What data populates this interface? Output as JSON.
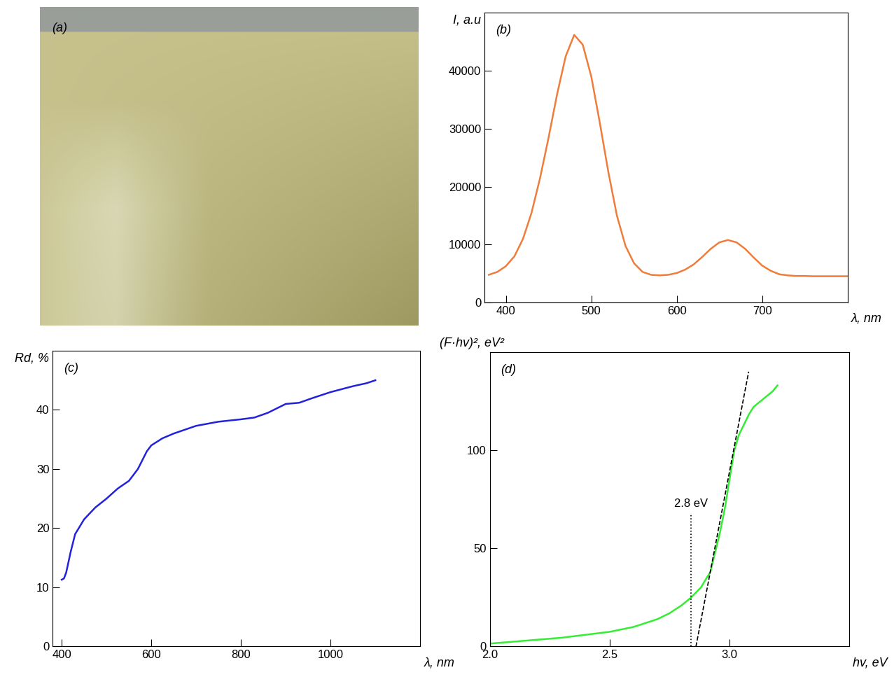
{
  "chart_data": [
    {
      "type": "image",
      "label": "(a)"
    },
    {
      "type": "line",
      "label": "(b)",
      "ylabel": "I, a.u",
      "xlabel": "λ, nm",
      "xlim": [
        375,
        800
      ],
      "xticks": [
        400,
        500,
        600,
        700
      ],
      "ylim": [
        0,
        50000
      ],
      "yticks": [
        0,
        10000,
        20000,
        30000,
        40000
      ],
      "series": [
        {
          "color": "#ee7d3b",
          "line_style": "solid",
          "x": [
            380,
            390,
            400,
            410,
            420,
            430,
            440,
            450,
            460,
            470,
            480,
            490,
            500,
            510,
            520,
            530,
            540,
            550,
            560,
            570,
            580,
            590,
            600,
            610,
            620,
            630,
            640,
            650,
            660,
            670,
            680,
            690,
            700,
            710,
            720,
            730,
            740,
            750,
            760,
            770,
            780,
            790,
            800
          ],
          "values": [
            4800,
            5300,
            6300,
            8000,
            11000,
            15500,
            21500,
            28500,
            36000,
            42500,
            46200,
            44500,
            39000,
            31000,
            22500,
            15000,
            9800,
            6800,
            5300,
            4800,
            4700,
            4800,
            5100,
            5700,
            6600,
            7900,
            9300,
            10400,
            10800,
            10400,
            9300,
            7800,
            6400,
            5500,
            4900,
            4700,
            4600,
            4600,
            4550,
            4550,
            4550,
            4550,
            4550
          ]
        }
      ]
    },
    {
      "type": "line",
      "label": "(c)",
      "ylabel": "Rd, %",
      "xlabel": "λ, nm",
      "xlim": [
        380,
        1200
      ],
      "xticks": [
        400,
        600,
        800,
        1000
      ],
      "ylim": [
        0,
        50
      ],
      "yticks": [
        0,
        10,
        20,
        30,
        40
      ],
      "series": [
        {
          "color": "#2222dd",
          "line_style": "solid",
          "x": [
            400,
            405,
            410,
            420,
            430,
            450,
            475,
            500,
            525,
            550,
            570,
            590,
            600,
            625,
            650,
            700,
            750,
            800,
            830,
            860,
            900,
            930,
            960,
            1000,
            1050,
            1080,
            1100
          ],
          "values": [
            11.3,
            11.5,
            12.5,
            16,
            19,
            21.5,
            23.5,
            25,
            26.7,
            28,
            30,
            33,
            34,
            35.2,
            36,
            37.3,
            38,
            38.4,
            38.7,
            39.5,
            41,
            41.2,
            42,
            43,
            44,
            44.5,
            45
          ]
        }
      ]
    },
    {
      "type": "line",
      "label": "(d)",
      "ylabel": "(F·hv)², eV²",
      "xlabel": "hv, eV",
      "xlim": [
        2.0,
        3.5
      ],
      "xticks": [
        2.0,
        2.5,
        3.0
      ],
      "ylim": [
        0,
        150
      ],
      "yticks": [
        0,
        50,
        100
      ],
      "annotations": [
        {
          "text": "2.8 eV",
          "x": 2.84,
          "y": 70
        }
      ],
      "series": [
        {
          "color": "#33ee33",
          "line_style": "solid",
          "x": [
            2.0,
            2.1,
            2.2,
            2.3,
            2.4,
            2.5,
            2.6,
            2.7,
            2.75,
            2.8,
            2.84,
            2.88,
            2.92,
            2.94,
            2.96,
            2.98,
            3.0,
            3.02,
            3.04,
            3.06,
            3.08,
            3.1,
            3.12,
            3.15,
            3.18,
            3.2
          ],
          "values": [
            1.5,
            2.5,
            3.5,
            4.5,
            6,
            7.5,
            10,
            14,
            17,
            21,
            25,
            30,
            38,
            48,
            58,
            70,
            85,
            100,
            108,
            113,
            118,
            122,
            124,
            127,
            130,
            133
          ]
        },
        {
          "color": "#000000",
          "line_style": "dashed",
          "x": [
            2.86,
            3.08
          ],
          "values": [
            0,
            140
          ]
        },
        {
          "color": "#000000",
          "line_style": "dotted",
          "x": [
            2.84,
            2.84
          ],
          "values": [
            0,
            68
          ]
        }
      ]
    }
  ]
}
